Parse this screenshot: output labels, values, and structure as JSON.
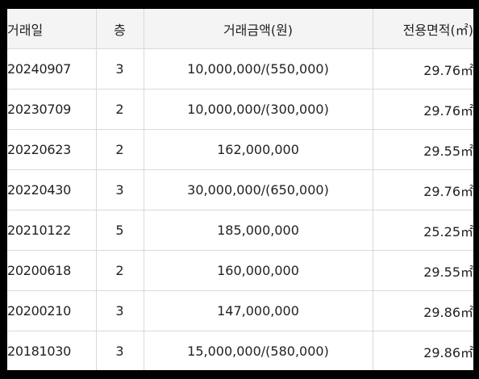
{
  "table": {
    "headers": {
      "date": "거래일",
      "floor": "층",
      "price": "거래금액(원)",
      "area": "전용면적(㎡)"
    },
    "rows": [
      {
        "date": "20240907",
        "floor": "3",
        "price": "10,000,000/(550,000)",
        "area": "29.76㎡"
      },
      {
        "date": "20230709",
        "floor": "2",
        "price": "10,000,000/(300,000)",
        "area": "29.76㎡"
      },
      {
        "date": "20220623",
        "floor": "2",
        "price": "162,000,000",
        "area": "29.55㎡"
      },
      {
        "date": "20220430",
        "floor": "3",
        "price": "30,000,000/(650,000)",
        "area": "29.76㎡"
      },
      {
        "date": "20210122",
        "floor": "5",
        "price": "185,000,000",
        "area": "25.25㎡"
      },
      {
        "date": "20200618",
        "floor": "2",
        "price": "160,000,000",
        "area": "29.55㎡"
      },
      {
        "date": "20200210",
        "floor": "3",
        "price": "147,000,000",
        "area": "29.86㎡"
      },
      {
        "date": "20181030",
        "floor": "3",
        "price": "15,000,000/(580,000)",
        "area": "29.86㎡"
      }
    ]
  }
}
